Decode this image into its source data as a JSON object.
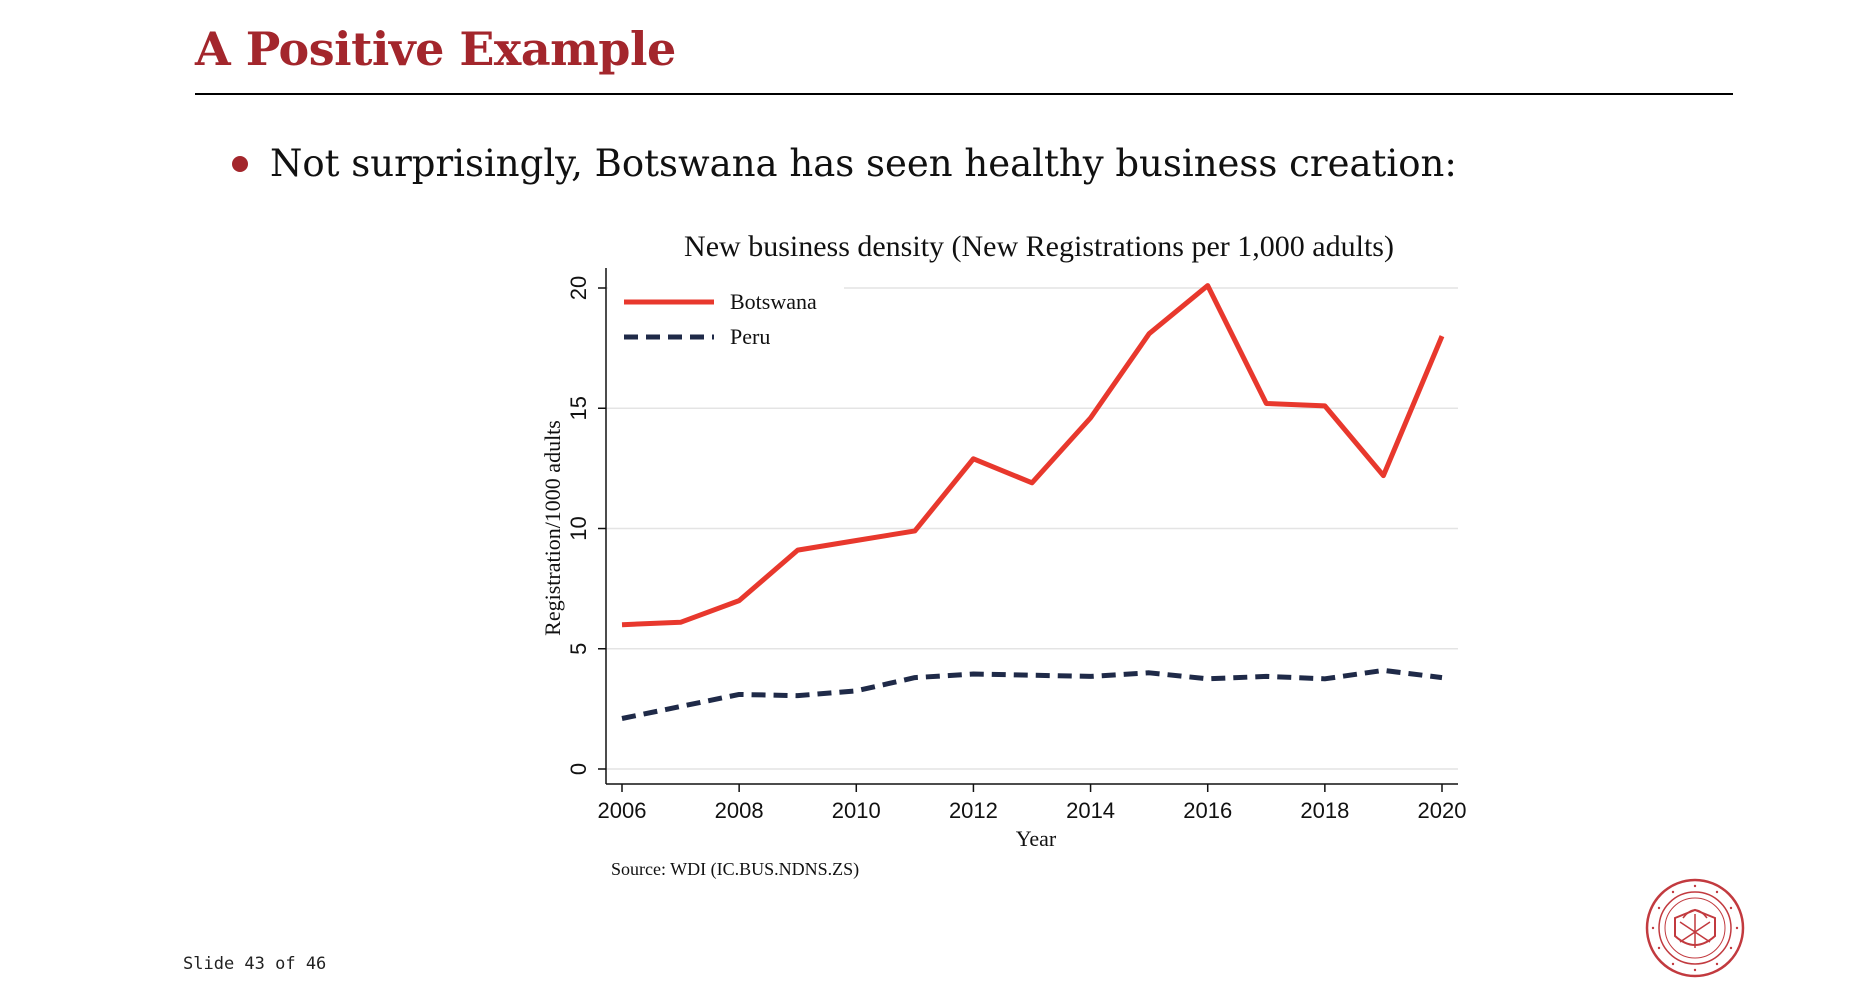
{
  "slide": {
    "title": "A Positive Example",
    "bullet": "Not surprisingly, Botswana has seen healthy business creation:",
    "footer": "Slide 43 of 46",
    "logo_text": "CARNEGIE MELLON UNIVERSITY · PITTSBURGH PENNSYLVANIA 1900"
  },
  "colors": {
    "title": "#a3262c",
    "botswana": "#e8382d",
    "peru": "#1f2a48",
    "grid": "#e4e4e4"
  },
  "chart_data": {
    "type": "line",
    "title": "New business density (New Registrations per 1,000 adults)",
    "xlabel": "Year",
    "ylabel": "Registration/1000 adults",
    "note": "Source: WDI (IC.BUS.NDNS.ZS)",
    "xlim": [
      2006,
      2020
    ],
    "ylim": [
      0,
      20
    ],
    "xticks": [
      2006,
      2008,
      2010,
      2012,
      2014,
      2016,
      2018,
      2020
    ],
    "yticks": [
      0,
      5,
      10,
      15,
      20
    ],
    "grid": true,
    "legend_position": "top-left",
    "x": [
      2006,
      2007,
      2008,
      2009,
      2010,
      2011,
      2012,
      2013,
      2014,
      2015,
      2016,
      2017,
      2018,
      2019,
      2020
    ],
    "series": [
      {
        "name": "Botswana",
        "style": "solid",
        "color": "#e8382d",
        "values": [
          6.0,
          6.1,
          7.0,
          9.1,
          9.5,
          9.9,
          12.9,
          11.9,
          14.6,
          18.1,
          20.1,
          15.2,
          15.1,
          12.2,
          18.0
        ]
      },
      {
        "name": "Peru",
        "style": "dashed",
        "color": "#1f2a48",
        "values": [
          2.1,
          2.6,
          3.1,
          3.05,
          3.25,
          3.8,
          3.95,
          3.9,
          3.85,
          4.0,
          3.75,
          3.85,
          3.75,
          4.1,
          3.8
        ]
      }
    ]
  }
}
